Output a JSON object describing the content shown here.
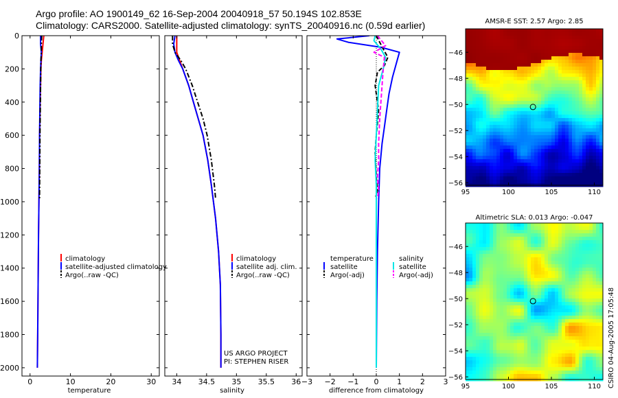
{
  "header": {
    "line1": "Argo profile: AO 1900149_62 16-Sep-2004 20040918_57 50.194S 102.853E",
    "line2": "Climatology: CARS2000. Satellite-adjusted climatology: synTS_20040916.nc (0.59d earlier)"
  },
  "colors": {
    "climatology": "#ff0000",
    "satellite": "#0000ff",
    "argo": "#000000",
    "salinity_satellite": "#00e5e5",
    "salinity_argo": "#ff00ff"
  },
  "credits": {
    "line1": "US ARGO PROJECT",
    "line2": "PI: STEPHEN RISER"
  },
  "stamp": "CSIRO 04-Aug-2005 17:05:48",
  "chart_data": [
    {
      "type": "line",
      "id": "temperature",
      "xlabel": "temperature",
      "xlim": [
        -2,
        32
      ],
      "xticks": [
        0,
        10,
        20,
        30
      ],
      "ylim": [
        2050,
        0
      ],
      "yticks": [
        0,
        200,
        400,
        600,
        800,
        1000,
        1200,
        1400,
        1600,
        1800,
        2000
      ],
      "legend": [
        "climatology",
        "satellite-adjusted climatology",
        "Argo(..raw -QC)"
      ],
      "series": [
        {
          "name": "climatology",
          "color": "#ff0000",
          "style": "solid",
          "x": [
            3.4,
            3.2,
            3.0,
            2.8,
            2.7,
            2.6,
            2.5,
            2.45,
            2.35,
            2.3,
            2.2,
            2.1,
            2.0,
            1.9,
            1.8
          ],
          "y": [
            0,
            50,
            100,
            150,
            200,
            300,
            400,
            500,
            600,
            800,
            1000,
            1200,
            1500,
            1800,
            2000
          ]
        },
        {
          "name": "satellite-adjusted climatology",
          "color": "#0000ff",
          "style": "solid",
          "x": [
            2.6,
            2.6,
            2.8,
            2.7,
            2.6,
            2.5,
            2.45,
            2.4,
            2.35,
            2.3,
            2.2,
            2.1,
            2.0,
            1.9,
            1.8
          ],
          "y": [
            0,
            50,
            100,
            150,
            200,
            300,
            400,
            500,
            600,
            800,
            1000,
            1200,
            1500,
            1800,
            2000
          ]
        },
        {
          "name": "Argo(..raw -QC)",
          "color": "#000000",
          "style": "dashdot",
          "x": [
            2.9,
            2.8,
            2.8,
            2.7,
            2.65,
            2.6,
            2.55,
            2.5,
            2.45,
            2.4,
            2.35
          ],
          "y": [
            0,
            50,
            100,
            150,
            200,
            300,
            400,
            500,
            600,
            800,
            980
          ]
        }
      ]
    },
    {
      "type": "line",
      "id": "salinity",
      "xlabel": "salinity",
      "xlim": [
        33.8,
        36.1
      ],
      "xticks": [
        34,
        34.5,
        35,
        35.5,
        36
      ],
      "ylim": [
        2050,
        0
      ],
      "yticks": [
        0,
        200,
        400,
        600,
        800,
        1000,
        1200,
        1400,
        1600,
        1800,
        2000
      ],
      "legend": [
        "climatology",
        "satellite adj. clim.",
        "Argo(..raw -QC)"
      ],
      "series": [
        {
          "name": "climatology",
          "color": "#ff0000",
          "style": "solid",
          "x": [
            34.0,
            34.0,
            34.0,
            34.05,
            34.1,
            34.2,
            34.28,
            34.36,
            34.44,
            34.52,
            34.58,
            34.65,
            34.7,
            34.73,
            34.74,
            34.74
          ],
          "y": [
            0,
            50,
            100,
            150,
            200,
            300,
            400,
            500,
            600,
            750,
            900,
            1100,
            1300,
            1500,
            1800,
            2000
          ]
        },
        {
          "name": "satellite adj. clim.",
          "color": "#0000ff",
          "style": "solid",
          "x": [
            33.97,
            33.95,
            33.97,
            34.03,
            34.1,
            34.2,
            34.28,
            34.36,
            34.44,
            34.52,
            34.58,
            34.65,
            34.7,
            34.73,
            34.74,
            34.74
          ],
          "y": [
            0,
            50,
            100,
            150,
            200,
            300,
            400,
            500,
            600,
            750,
            900,
            1100,
            1300,
            1500,
            1800,
            2000
          ]
        },
        {
          "name": "Argo(..raw -QC)",
          "color": "#000000",
          "style": "dashdot",
          "x": [
            33.93,
            33.93,
            33.97,
            34.07,
            34.15,
            34.26,
            34.35,
            34.44,
            34.51,
            34.58,
            34.63,
            34.65
          ],
          "y": [
            0,
            50,
            100,
            150,
            200,
            300,
            400,
            500,
            600,
            750,
            900,
            980
          ]
        }
      ]
    },
    {
      "type": "line",
      "id": "difference",
      "xlabel": "difference from climatology",
      "xlim": [
        -3,
        3
      ],
      "xticks": [
        -3,
        -2,
        -1,
        0,
        1,
        2,
        3
      ],
      "ylim": [
        2050,
        0
      ],
      "yticks": [
        0,
        200,
        400,
        600,
        800,
        1000,
        1200,
        1400,
        1600,
        1800,
        2000
      ],
      "legend_temperature": {
        "title": "temperature",
        "entries": [
          "satellite",
          "Argo(-adj)"
        ]
      },
      "legend_salinity": {
        "title": "salinity",
        "entries": [
          "satellite",
          "Argo(-adj)"
        ]
      },
      "series": [
        {
          "name": "temperature satellite",
          "color": "#0000ff",
          "style": "solid",
          "x": [
            -0.3,
            -1.7,
            -1.2,
            0.2,
            1.0,
            0.9,
            0.7,
            0.55,
            0.45,
            0.35,
            0.25,
            0.15,
            0.1,
            0.05,
            0.02,
            0.0
          ],
          "y": [
            0,
            20,
            40,
            70,
            100,
            150,
            250,
            350,
            450,
            550,
            650,
            800,
            1000,
            1300,
            1600,
            2000
          ]
        },
        {
          "name": "temperature Argo(-adj)",
          "color": "#000000",
          "style": "dashed",
          "x": [
            0.0,
            0.3,
            0.5,
            0.35,
            0.05,
            -0.05,
            0.1,
            0.0,
            -0.05,
            0.0,
            0.05,
            -0.02
          ],
          "y": [
            0,
            80,
            130,
            180,
            220,
            300,
            450,
            600,
            700,
            850,
            930,
            970
          ]
        },
        {
          "name": "salinity satellite",
          "color": "#00e5e5",
          "style": "solid",
          "x": [
            -0.05,
            -0.1,
            0.2,
            0.4,
            0.3,
            0.1,
            0.05,
            0.0,
            -0.05,
            0.0,
            0.0,
            0.0
          ],
          "y": [
            0,
            30,
            80,
            130,
            200,
            300,
            450,
            600,
            750,
            900,
            1200,
            2000
          ]
        },
        {
          "name": "salinity Argo(-adj)",
          "color": "#ff00ff",
          "style": "dashed",
          "x": [
            0.05,
            0.4,
            -0.1,
            0.35,
            0.3,
            0.25,
            0.15,
            0.1,
            0.1,
            0.05,
            0.1,
            0.05
          ],
          "y": [
            0,
            60,
            100,
            130,
            200,
            300,
            500,
            650,
            750,
            850,
            930,
            980
          ]
        }
      ]
    },
    {
      "type": "heatmap",
      "id": "sst-map",
      "title": "AMSR-E SST: 2.57 Argo: 2.85",
      "xticks": [
        95,
        100,
        105,
        110
      ],
      "yticks": [
        -46,
        -48,
        -50,
        -52,
        -54,
        -56
      ],
      "xlim": [
        95,
        111
      ],
      "ylim": [
        -56.2,
        -44.2
      ],
      "marker": {
        "lon": 102.853,
        "lat": -50.194
      },
      "colorscale": "jet"
    },
    {
      "type": "heatmap",
      "id": "sla-map",
      "title": "Altimetric SLA: 0.013 Argo: -0.047",
      "xticks": [
        95,
        100,
        105,
        110
      ],
      "yticks": [
        -46,
        -48,
        -50,
        -52,
        -54,
        -56
      ],
      "xlim": [
        95,
        111
      ],
      "ylim": [
        -56.2,
        -44.2
      ],
      "marker": {
        "lon": 102.853,
        "lat": -50.194
      },
      "colorscale": "jet"
    }
  ]
}
